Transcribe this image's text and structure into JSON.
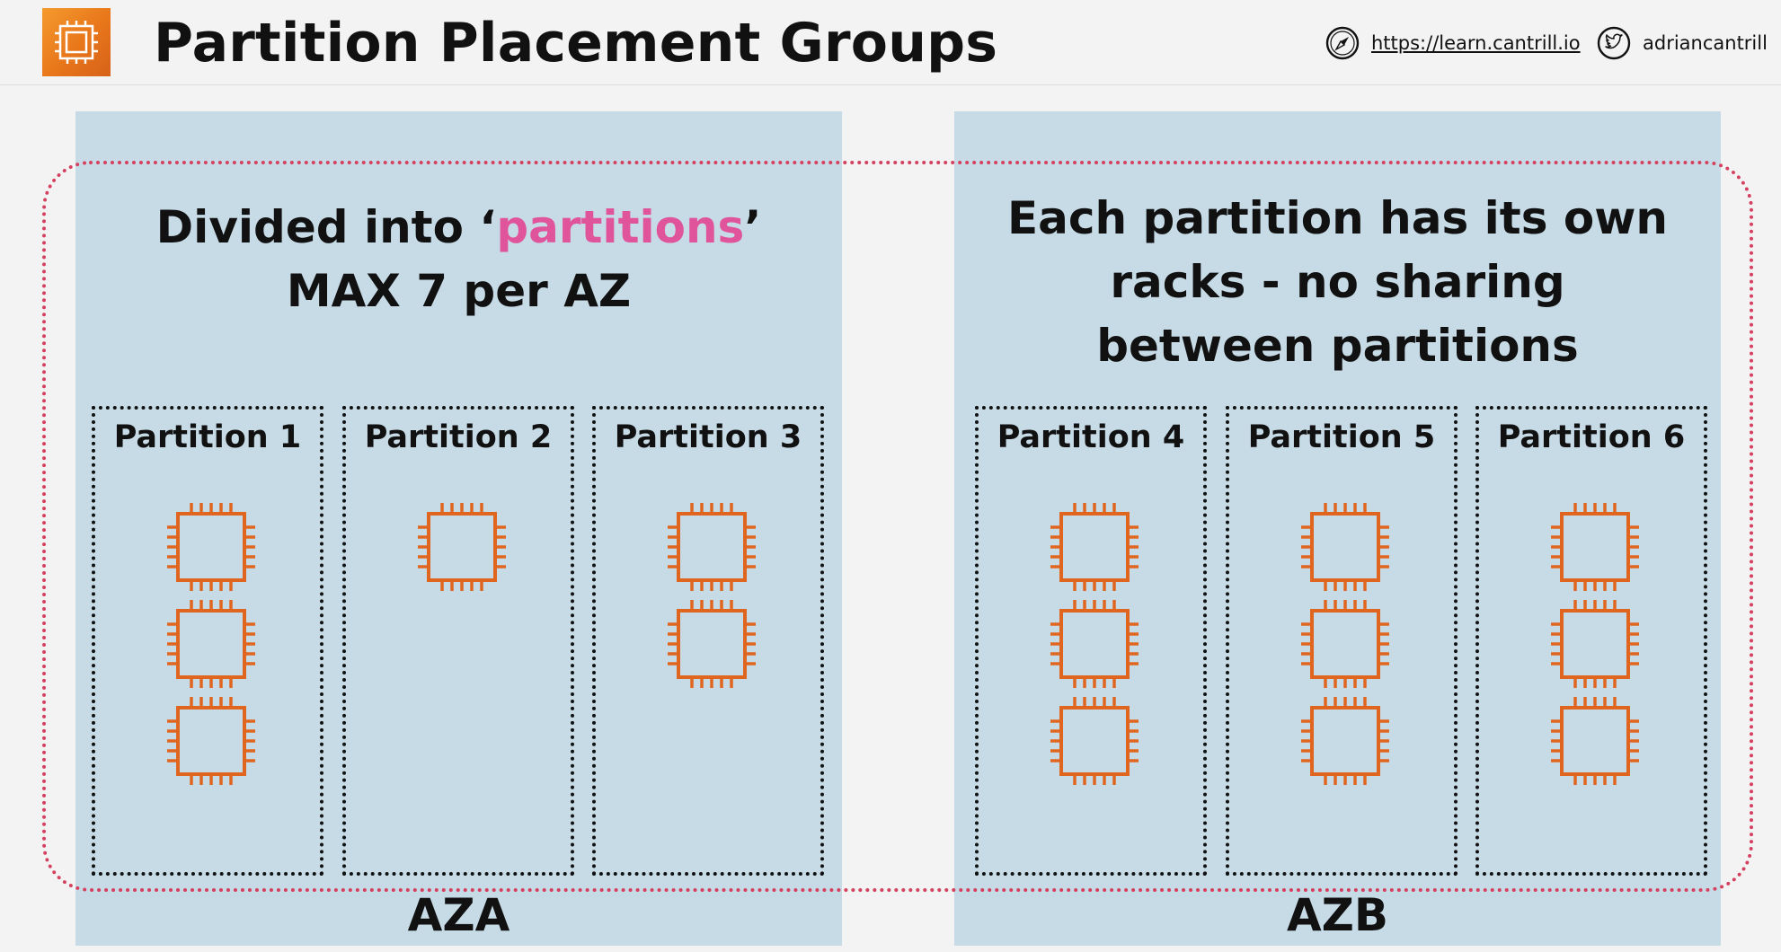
{
  "header": {
    "title": "Partition Placement Groups",
    "logo_icon": "aws-ec2-icon",
    "website_icon": "compass-icon",
    "website_url": "https://learn.cantrill.io",
    "twitter_icon": "twitter-bird-icon",
    "twitter_handle": "adriancantrill"
  },
  "left_heading": {
    "line1_prefix": "Divided into ‘",
    "line1_highlight": "partitions",
    "line1_suffix": "’",
    "line2": "MAX 7 per AZ"
  },
  "right_heading": {
    "line1": "Each partition has its own",
    "line2": "racks - no sharing",
    "line3": "between partitions"
  },
  "availability_zones": [
    {
      "label": "AZA"
    },
    {
      "label": "AZB"
    }
  ],
  "partitions": [
    {
      "label": "Partition 1",
      "instances": 3
    },
    {
      "label": "Partition 2",
      "instances": 1
    },
    {
      "label": "Partition 3",
      "instances": 2
    },
    {
      "label": "Partition 4",
      "instances": 3
    },
    {
      "label": "Partition 5",
      "instances": 3
    },
    {
      "label": "Partition 6",
      "instances": 3
    }
  ],
  "colors": {
    "az_background": "#c7dbe7",
    "placement_group_border": "#d4405e",
    "highlight": "#e0549b",
    "instance_icon": "#e0661f",
    "logo": "#ec7a1c"
  }
}
